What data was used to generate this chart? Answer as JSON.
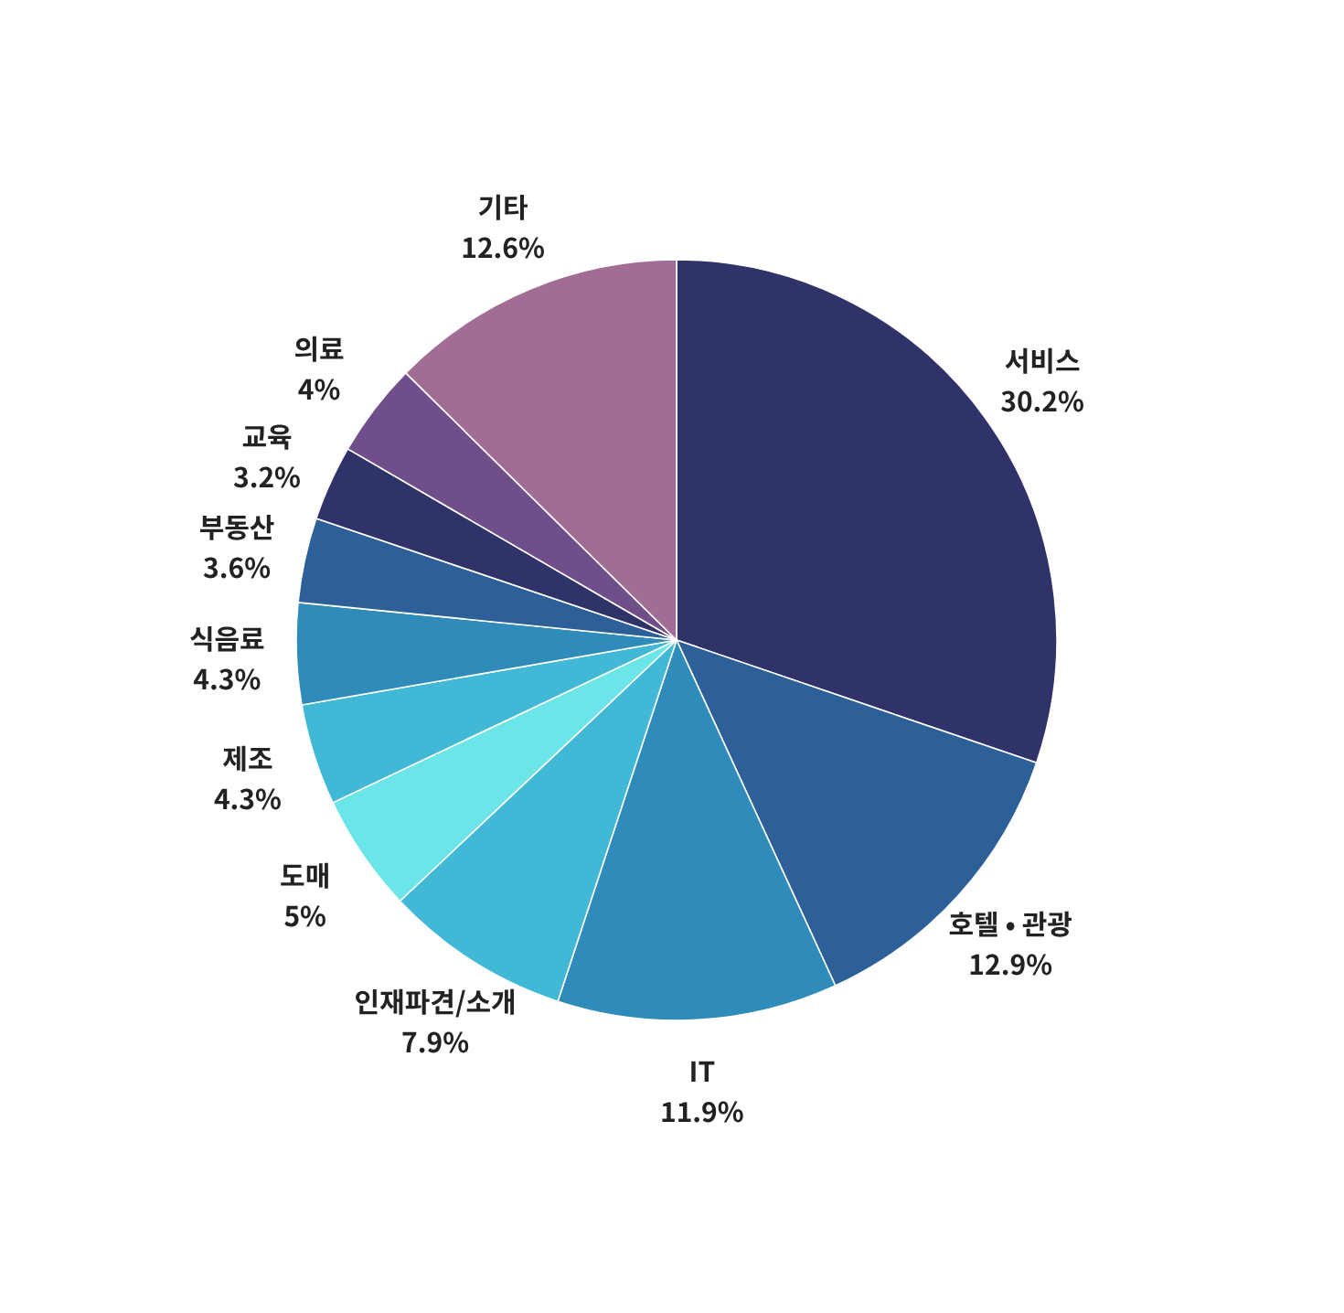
{
  "chart_data": {
    "type": "pie",
    "categories": [
      "서비스",
      "호텔 • 관광",
      "IT",
      "인재파견/소개",
      "도매",
      "제조",
      "식음료",
      "부동산",
      "교육",
      "의료",
      "기타"
    ],
    "values": [
      30.2,
      12.9,
      11.9,
      7.9,
      5,
      4.3,
      4.3,
      3.6,
      3.2,
      4,
      12.6
    ],
    "value_labels": [
      "30.2%",
      "12.9%",
      "11.9%",
      "7.9%",
      "5%",
      "4.3%",
      "4.3%",
      "3.6%",
      "3.2%",
      "4%",
      "12.6%"
    ],
    "colors": [
      "#2f3369",
      "#2d5f98",
      "#2e8bba",
      "#41b8d5",
      "#6ce5e8",
      "#41b8d5",
      "#2e8bba",
      "#2d5f98",
      "#2f3369",
      "#6f4e8a",
      "#a26d95"
    ]
  }
}
